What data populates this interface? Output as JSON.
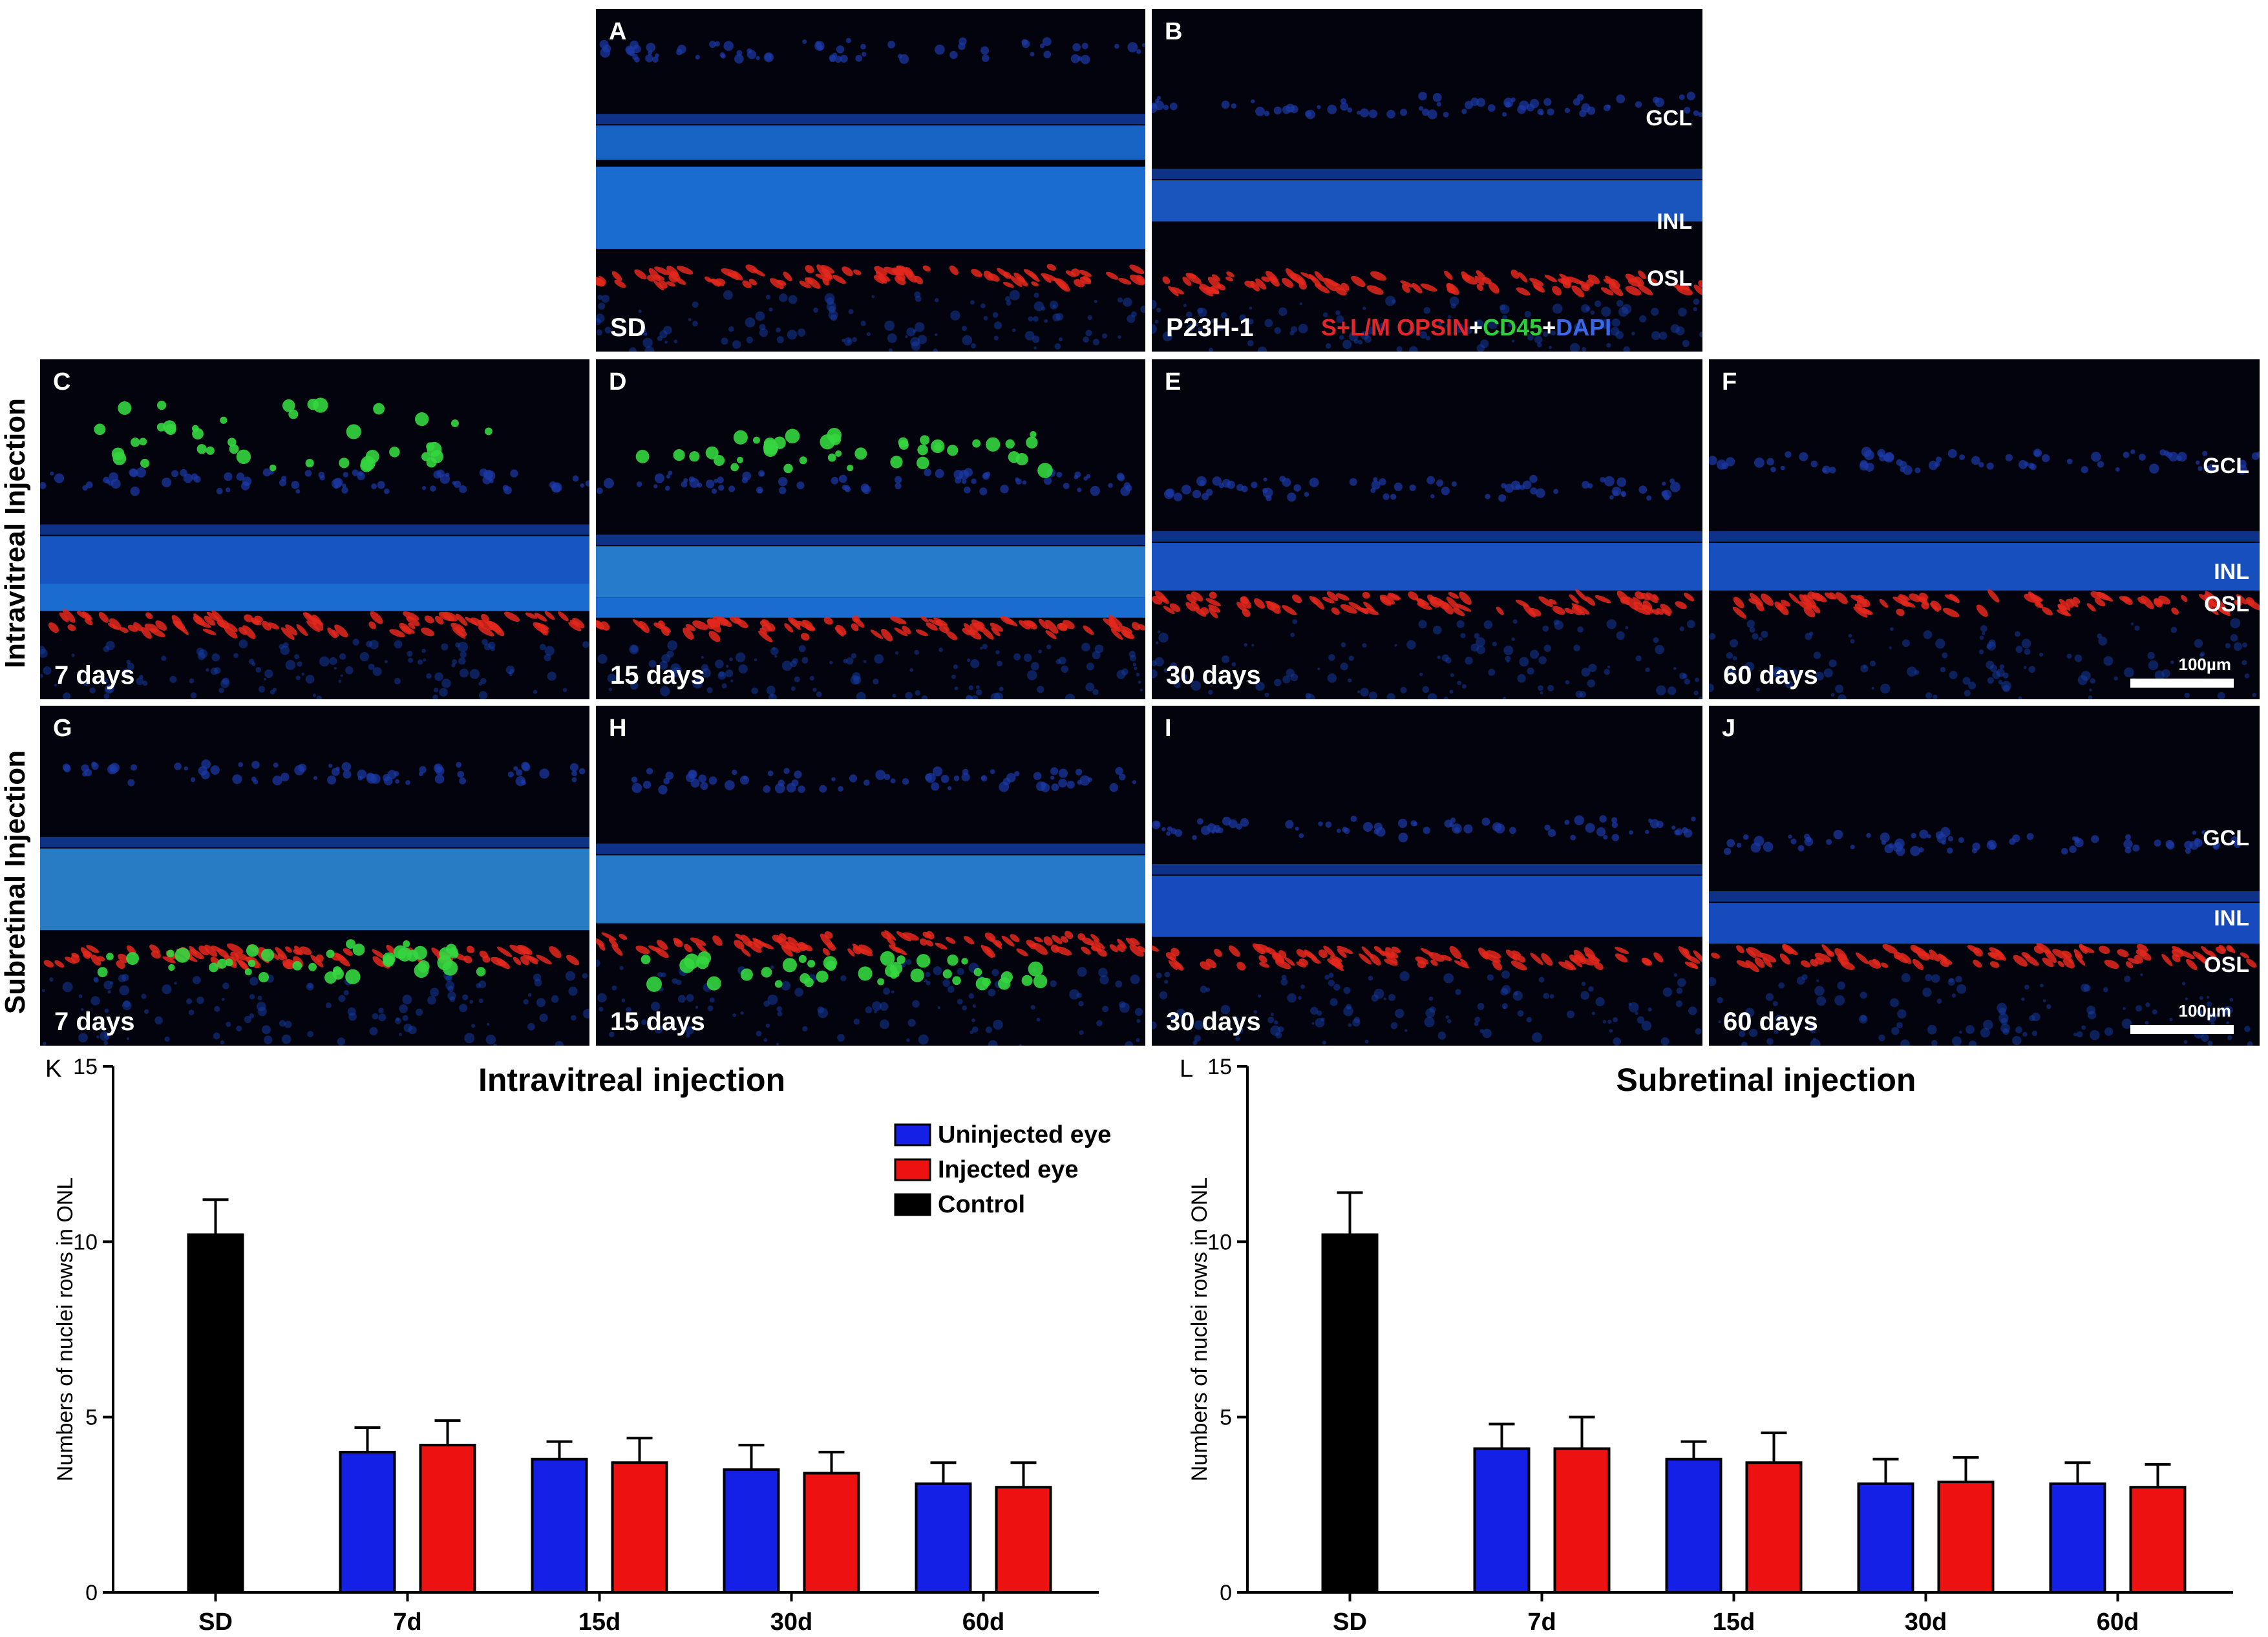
{
  "top_panels": [
    {
      "id": "A",
      "caption": "SD"
    },
    {
      "id": "B",
      "caption": "P23H-1",
      "layers": [
        "GCL",
        "INL",
        "OSL"
      ],
      "stain": {
        "part1": "S+L/M OPSIN",
        "plus1": "+",
        "part2": "CD45",
        "plus2": "+",
        "part3": "DAPI"
      }
    }
  ],
  "row_labels": {
    "intravitreal": "Intravitreal Injection",
    "subretinal": "Subretinal Injection"
  },
  "intravitreal_panels": [
    {
      "id": "C",
      "caption": "7 days"
    },
    {
      "id": "D",
      "caption": "15 days"
    },
    {
      "id": "E",
      "caption": "30 days"
    },
    {
      "id": "F",
      "caption": "60 days",
      "layers": [
        "GCL",
        "INL",
        "OSL"
      ],
      "scale": "100µm"
    }
  ],
  "subretinal_panels": [
    {
      "id": "G",
      "caption": "7 days"
    },
    {
      "id": "H",
      "caption": "15 days"
    },
    {
      "id": "I",
      "caption": "30 days"
    },
    {
      "id": "J",
      "caption": "60 days",
      "layers": [
        "GCL",
        "INL",
        "OSL"
      ],
      "scale": "100µm"
    }
  ],
  "colors": {
    "uninjected": "#1420e6",
    "injected": "#ee1111",
    "control": "#000000"
  },
  "chart_data": [
    {
      "panel": "K",
      "type": "bar",
      "title": "Intravitreal injection",
      "ylabel": "Numbers of nuclei rows in ONL",
      "xlabel": "",
      "ylim": [
        0,
        15
      ],
      "yticks": [
        0,
        5,
        10,
        15
      ],
      "categories": [
        "SD",
        "7d",
        "15d",
        "30d",
        "60d"
      ],
      "legend": [
        "Uninjected eye",
        "Injected eye",
        "Control"
      ],
      "series": [
        {
          "name": "Control",
          "values": [
            10.2,
            null,
            null,
            null,
            null
          ],
          "errors": [
            1.0,
            null,
            null,
            null,
            null
          ]
        },
        {
          "name": "Uninjected eye",
          "values": [
            null,
            4.0,
            3.8,
            3.5,
            3.1
          ],
          "errors": [
            null,
            0.7,
            0.5,
            0.7,
            0.6
          ]
        },
        {
          "name": "Injected eye",
          "values": [
            null,
            4.2,
            3.7,
            3.4,
            3.0
          ],
          "errors": [
            null,
            0.7,
            0.7,
            0.6,
            0.7
          ]
        }
      ]
    },
    {
      "panel": "L",
      "type": "bar",
      "title": "Subretinal injection",
      "ylabel": "Numbers of nuclei rows in ONL",
      "xlabel": "",
      "ylim": [
        0,
        15
      ],
      "yticks": [
        0,
        5,
        10,
        15
      ],
      "categories": [
        "SD",
        "7d",
        "15d",
        "30d",
        "60d"
      ],
      "legend": [],
      "series": [
        {
          "name": "Control",
          "values": [
            10.2,
            null,
            null,
            null,
            null
          ],
          "errors": [
            1.2,
            null,
            null,
            null,
            null
          ]
        },
        {
          "name": "Uninjected eye",
          "values": [
            null,
            4.1,
            3.8,
            3.1,
            3.1
          ],
          "errors": [
            null,
            0.7,
            0.5,
            0.7,
            0.6
          ]
        },
        {
          "name": "Injected eye",
          "values": [
            null,
            4.1,
            3.7,
            3.15,
            3.0
          ],
          "errors": [
            null,
            0.9,
            0.85,
            0.7,
            0.65
          ]
        }
      ]
    }
  ]
}
